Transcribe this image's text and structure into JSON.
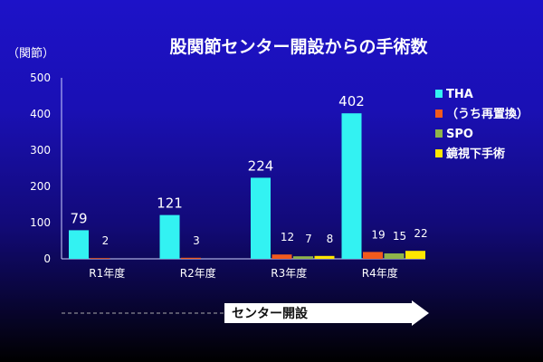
{
  "chart_data": {
    "type": "bar",
    "title": "股関節センター開設からの手術数",
    "ylabel": "（関節）",
    "xlabel": "",
    "ylim": [
      0,
      500
    ],
    "yticks": [
      0,
      100,
      200,
      300,
      400,
      500
    ],
    "categories": [
      "R1年度",
      "R2年度",
      "R3年度",
      "R4年度"
    ],
    "series": [
      {
        "name": "THA",
        "color": "#33f2f2",
        "values": [
          79,
          121,
          224,
          402
        ]
      },
      {
        "name": "（うち再置換）",
        "color": "#f15a1d",
        "values": [
          2,
          3,
          12,
          19
        ]
      },
      {
        "name": "SPO",
        "color": "#8fb44a",
        "values": [
          null,
          null,
          7,
          15
        ]
      },
      {
        "name": "鏡視下手術",
        "color": "#ffe600",
        "values": [
          null,
          null,
          8,
          22
        ]
      }
    ],
    "legend_position": "right",
    "grid": false
  },
  "annotation": {
    "label": "センター開設"
  }
}
